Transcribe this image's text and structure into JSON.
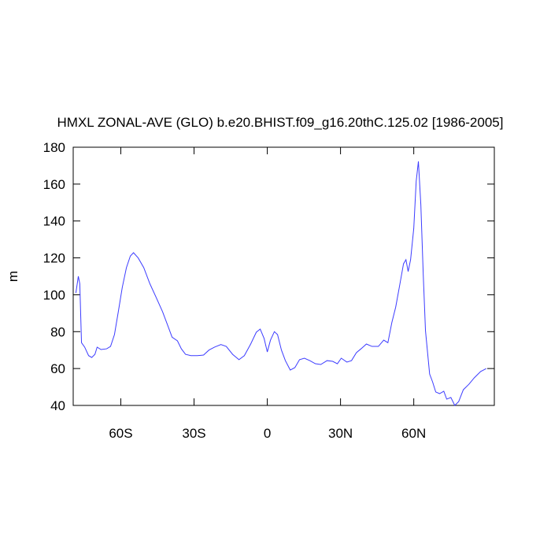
{
  "chart_data": {
    "type": "line",
    "title": "HMXL ZONAL-AVE (GLO) b.e20.BHIST.f09_g16.20thC.125.02 [1986-2005]",
    "y_label": "m",
    "xlim": [
      -79.5,
      93
    ],
    "ylim": [
      40,
      180
    ],
    "xticks": [
      {
        "value": -60,
        "label": "60S"
      },
      {
        "value": -30,
        "label": "30S"
      },
      {
        "value": 0,
        "label": "0"
      },
      {
        "value": 30,
        "label": "30N"
      },
      {
        "value": 60,
        "label": "60N"
      }
    ],
    "yticks": [
      40,
      60,
      80,
      100,
      120,
      140,
      160,
      180
    ],
    "grid": false,
    "series": [
      {
        "color": "#3c3cff",
        "x": [
          -78.4,
          -77.4,
          -76.8,
          -76.1,
          -74.8,
          -73.2,
          -71.9,
          -70.6,
          -69.7,
          -68.1,
          -65.8,
          -64.2,
          -62.6,
          -61,
          -59.4,
          -57.7,
          -56.1,
          -54.8,
          -52.9,
          -50.6,
          -48.1,
          -45.5,
          -42.9,
          -40.6,
          -39,
          -36.8,
          -35.2,
          -33.5,
          -31.3,
          -28.7,
          -26.1,
          -23.9,
          -21.6,
          -19,
          -16.8,
          -14.2,
          -11.6,
          -9.4,
          -6.8,
          -4.5,
          -2.9,
          -1.3,
          0,
          1.3,
          2.9,
          4.2,
          5.8,
          7.4,
          9.4,
          11.3,
          13.2,
          15.2,
          17.4,
          19.7,
          21.9,
          24.5,
          26.8,
          28.7,
          30.3,
          32.6,
          34.5,
          36.5,
          38.4,
          40.6,
          42.9,
          45.5,
          47.7,
          49.4,
          51,
          52.6,
          54.2,
          55.8,
          56.8,
          57.7,
          58.7,
          60,
          61,
          61.9,
          62.9,
          63.9,
          64.8,
          66.5,
          67.7,
          69,
          70.6,
          72.3,
          73.5,
          75.2,
          76.8,
          78.4,
          80.3,
          82.6,
          84.8,
          87.4,
          89.7
        ],
        "values": [
          101,
          110,
          106,
          74,
          71.6,
          67,
          66,
          67.7,
          71.6,
          70.3,
          70.7,
          72,
          78.4,
          91,
          104,
          114.7,
          121,
          122.8,
          120,
          114.7,
          106,
          98.5,
          90.8,
          82.7,
          77,
          75,
          70.7,
          67.7,
          67,
          67,
          67.3,
          70,
          71.6,
          73,
          72,
          67.7,
          64.8,
          67,
          73.3,
          79.7,
          81.4,
          76.3,
          69,
          75.4,
          80,
          78.4,
          70,
          64.3,
          59.2,
          60.5,
          64.8,
          65.6,
          64.3,
          62.6,
          62.2,
          64.3,
          63.9,
          62.6,
          65.6,
          63.5,
          64.3,
          68.6,
          70.7,
          73.3,
          72,
          72,
          75.4,
          74,
          84.8,
          93.3,
          104.9,
          116.8,
          119,
          112.6,
          119,
          136,
          161.6,
          172.3,
          148.8,
          110.4,
          80.5,
          57,
          52.8,
          47.3,
          46.4,
          47.7,
          43.4,
          44.3,
          40,
          42.1,
          48.5,
          51.5,
          55,
          58.4,
          60
        ]
      }
    ]
  }
}
